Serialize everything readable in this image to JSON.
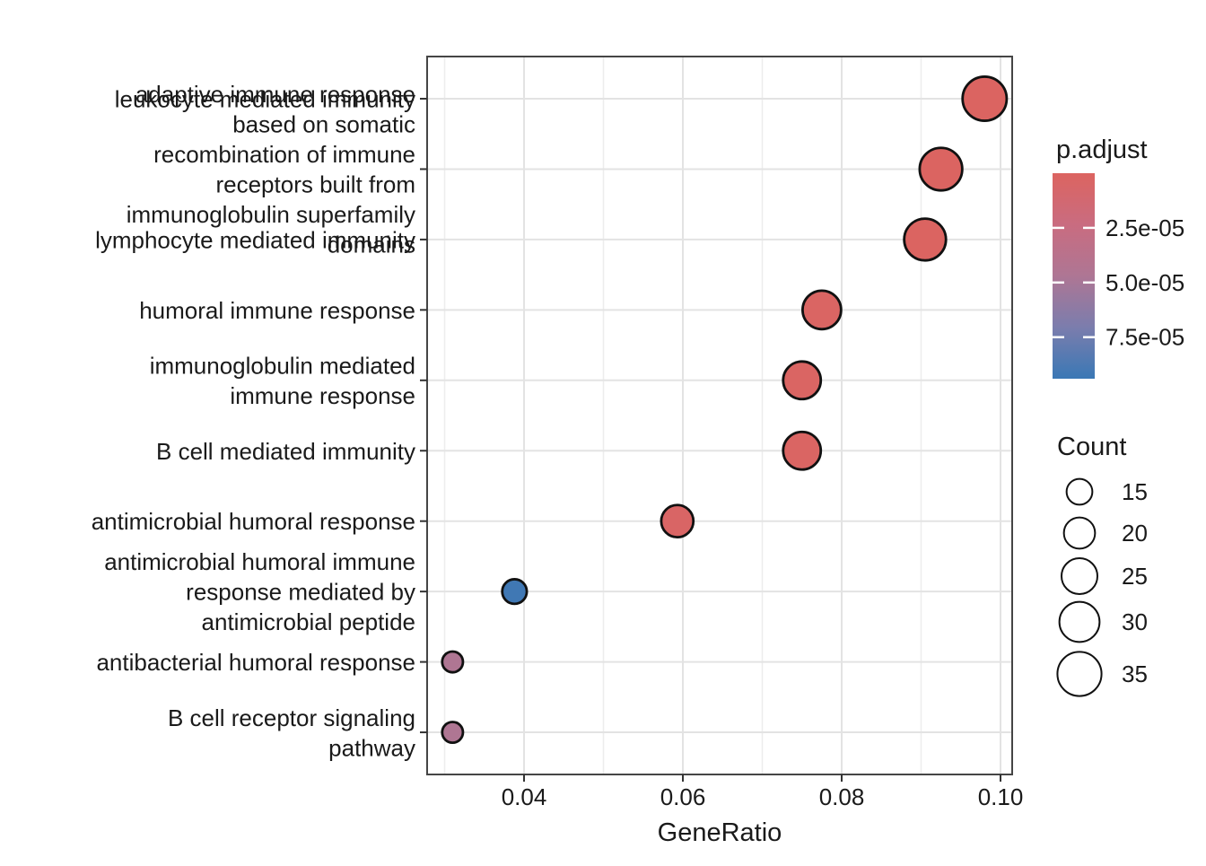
{
  "chart_data": {
    "type": "scatter",
    "title": "",
    "xlabel": "GeneRatio",
    "xlim": [
      0.0278,
      0.1015
    ],
    "x_ticks": [
      0.04,
      0.06,
      0.08,
      0.1
    ],
    "x_tick_labels": [
      "0.04",
      "0.06",
      "0.08",
      "0.10"
    ],
    "x_minor_ticks": [
      0.03,
      0.05,
      0.07,
      0.09
    ],
    "grid": true,
    "categories": [
      "leukocyte mediated immunity",
      "adaptive immune response based on somatic recombination of immune receptors built from immunoglobulin superfamily domains",
      "lymphocyte mediated immunity",
      "humoral immune response",
      "immunoglobulin mediated immune response",
      "B cell mediated immunity",
      "antimicrobial humoral response",
      "antimicrobial humoral immune response mediated by antimicrobial peptide",
      "antibacterial humoral response",
      "B cell receptor signaling pathway"
    ],
    "points": [
      {
        "term": "leukocyte mediated immunity",
        "label_lines": [
          "leukocyte mediated immunity"
        ],
        "gene_ratio": 0.098,
        "count": 35,
        "p_adjust": 1e-06
      },
      {
        "term": "adaptive immune response based on somatic recombination of immune receptors built from immunoglobulin superfamily domains",
        "label_lines": [
          "adaptive immune response",
          "based on somatic",
          "recombination of immune",
          "receptors built from",
          "immunoglobulin superfamily",
          "domains"
        ],
        "gene_ratio": 0.0925,
        "count": 33,
        "p_adjust": 1e-06
      },
      {
        "term": "lymphocyte mediated immunity",
        "label_lines": [
          "lymphocyte mediated immunity"
        ],
        "gene_ratio": 0.0905,
        "count": 32,
        "p_adjust": 1e-06
      },
      {
        "term": "humoral immune response",
        "label_lines": [
          "humoral immune response"
        ],
        "gene_ratio": 0.0775,
        "count": 28,
        "p_adjust": 2e-06
      },
      {
        "term": "immunoglobulin mediated immune response",
        "label_lines": [
          "immunoglobulin mediated",
          "immune response"
        ],
        "gene_ratio": 0.075,
        "count": 27,
        "p_adjust": 2e-06
      },
      {
        "term": "B cell mediated immunity",
        "label_lines": [
          "B cell mediated immunity"
        ],
        "gene_ratio": 0.075,
        "count": 27,
        "p_adjust": 2e-06
      },
      {
        "term": "antimicrobial humoral response",
        "label_lines": [
          "antimicrobial humoral response"
        ],
        "gene_ratio": 0.0593,
        "count": 21,
        "p_adjust": 4e-06
      },
      {
        "term": "antimicrobial humoral immune response mediated by antimicrobial peptide",
        "label_lines": [
          "antimicrobial humoral immune",
          "response mediated by",
          "antimicrobial peptide"
        ],
        "gene_ratio": 0.0388,
        "count": 14,
        "p_adjust": 9.2e-05
      },
      {
        "term": "antibacterial humoral response",
        "label_lines": [
          "antibacterial humoral response"
        ],
        "gene_ratio": 0.031,
        "count": 11,
        "p_adjust": 4.6e-05
      },
      {
        "term": "B cell receptor signaling pathway",
        "label_lines": [
          "B cell receptor signaling",
          "pathway"
        ],
        "gene_ratio": 0.031,
        "count": 11,
        "p_adjust": 4.6e-05
      }
    ],
    "legend_p": {
      "title": "p.adjust",
      "domain": [
        0,
        9.4e-05
      ],
      "ticks": [
        2.5e-05,
        5e-05,
        7.5e-05
      ],
      "tick_labels": [
        "2.5e-05",
        "5.0e-05",
        "7.5e-05"
      ],
      "gradient_stops": [
        {
          "t": 0.0,
          "color": "#DC6460"
        },
        {
          "t": 0.25,
          "color": "#C96C80"
        },
        {
          "t": 0.5,
          "color": "#AE7694"
        },
        {
          "t": 0.75,
          "color": "#7B7DAD"
        },
        {
          "t": 1.0,
          "color": "#3A78B5"
        }
      ],
      "legend_position": "right"
    },
    "legend_count": {
      "title": "Count",
      "values": [
        15,
        20,
        25,
        30,
        35
      ],
      "labels": [
        "15",
        "20",
        "25",
        "30",
        "35"
      ],
      "legend_position": "right"
    }
  },
  "colors": {
    "background": "#ffffff",
    "panel_border": "#454545",
    "grid_major": "#e3e3e3",
    "grid_minor": "#ededed",
    "tick_mark": "#333333",
    "point_stroke": "#111111",
    "text": "#1a1a1a",
    "colorbar_tick": "#ffffff"
  }
}
